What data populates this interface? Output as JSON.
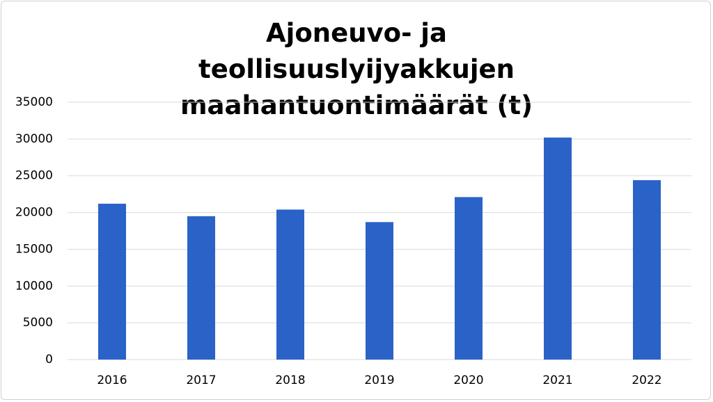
{
  "chart_data": {
    "type": "bar",
    "title": "Ajoneuvo- ja teollisuuslyijyakkujen maahantuontimäärät (t)",
    "categories": [
      "2016",
      "2017",
      "2018",
      "2019",
      "2020",
      "2021",
      "2022"
    ],
    "values": [
      21200,
      19500,
      20400,
      18700,
      22100,
      30200,
      24400
    ],
    "color": "#2a62c8",
    "ylim": [
      0,
      35000
    ],
    "yticks": [
      0,
      5000,
      10000,
      15000,
      20000,
      25000,
      30000,
      35000
    ],
    "grid": true
  }
}
